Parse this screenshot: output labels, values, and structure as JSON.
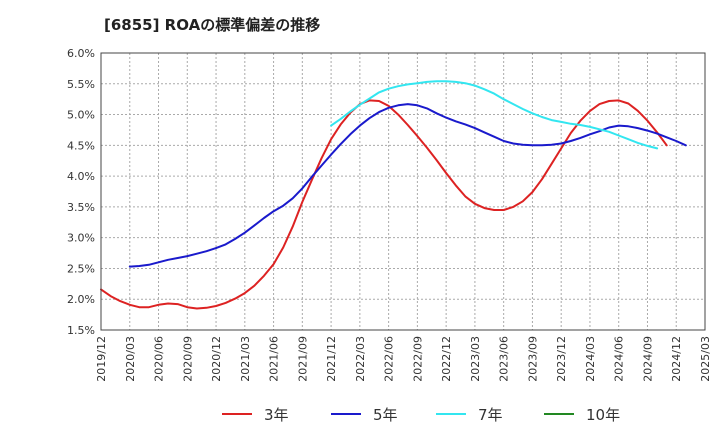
{
  "chart_data": {
    "type": "line",
    "title": "[6855]  ROAの標準偏差の推移",
    "xlabel": "",
    "ylabel": "",
    "ylim": [
      1.5,
      6.0
    ],
    "y_ticks": [
      "6.0%",
      "5.5%",
      "5.0%",
      "4.5%",
      "4.0%",
      "3.5%",
      "3.0%",
      "2.5%",
      "2.0%",
      "1.5%"
    ],
    "y_tick_values": [
      6.0,
      5.5,
      5.0,
      4.5,
      4.0,
      3.5,
      3.0,
      2.5,
      2.0,
      1.5
    ],
    "x_ticks": [
      "2019/12",
      "2020/03",
      "2020/06",
      "2020/09",
      "2020/12",
      "2021/03",
      "2021/06",
      "2021/09",
      "2021/12",
      "2022/03",
      "2022/06",
      "2022/09",
      "2022/12",
      "2023/03",
      "2023/06",
      "2023/09",
      "2023/12",
      "2024/03",
      "2024/06",
      "2024/09",
      "2024/12",
      "2025/03"
    ],
    "grid": true,
    "legend_position": "bottom",
    "series": [
      {
        "name": "3年",
        "color": "#dd2222",
        "x_index_start": 0,
        "values": [
          2.16,
          2.05,
          1.97,
          1.91,
          1.87,
          1.87,
          1.91,
          1.93,
          1.92,
          1.87,
          1.85,
          1.86,
          1.89,
          1.94,
          2.01,
          2.1,
          2.22,
          2.38,
          2.57,
          2.84,
          3.18,
          3.58,
          3.94,
          4.29,
          4.6,
          4.84,
          5.03,
          5.17,
          5.23,
          5.22,
          5.14,
          5.0,
          4.83,
          4.65,
          4.46,
          4.26,
          4.05,
          3.85,
          3.67,
          3.55,
          3.48,
          3.45,
          3.45,
          3.5,
          3.59,
          3.74,
          3.95,
          4.2,
          4.45,
          4.7,
          4.9,
          5.06,
          5.17,
          5.22,
          5.23,
          5.18,
          5.06,
          4.9,
          4.71,
          4.5
        ]
      },
      {
        "name": "5年",
        "color": "#1a1acc",
        "x_index_start": 3,
        "values": [
          2.53,
          2.54,
          2.56,
          2.6,
          2.64,
          2.67,
          2.7,
          2.74,
          2.78,
          2.83,
          2.89,
          2.98,
          3.08,
          3.2,
          3.32,
          3.43,
          3.52,
          3.64,
          3.8,
          3.99,
          4.17,
          4.35,
          4.52,
          4.68,
          4.82,
          4.94,
          5.04,
          5.11,
          5.15,
          5.17,
          5.15,
          5.1,
          5.02,
          4.95,
          4.89,
          4.84,
          4.78,
          4.71,
          4.64,
          4.57,
          4.53,
          4.51,
          4.5,
          4.5,
          4.51,
          4.53,
          4.57,
          4.62,
          4.68,
          4.73,
          4.79,
          4.82,
          4.81,
          4.78,
          4.74,
          4.69,
          4.63,
          4.57,
          4.5
        ]
      },
      {
        "name": "7年",
        "color": "#33e6f0",
        "x_index_start": 24,
        "values": [
          4.82,
          4.93,
          5.05,
          5.16,
          5.26,
          5.36,
          5.42,
          5.46,
          5.49,
          5.51,
          5.53,
          5.54,
          5.54,
          5.53,
          5.51,
          5.47,
          5.41,
          5.34,
          5.25,
          5.17,
          5.09,
          5.02,
          4.96,
          4.91,
          4.88,
          4.85,
          4.83,
          4.8,
          4.76,
          4.72,
          4.66,
          4.6,
          4.54,
          4.49,
          4.45
        ]
      },
      {
        "name": "10年",
        "color": "#228822",
        "x_index_start": 0,
        "values": []
      }
    ]
  }
}
